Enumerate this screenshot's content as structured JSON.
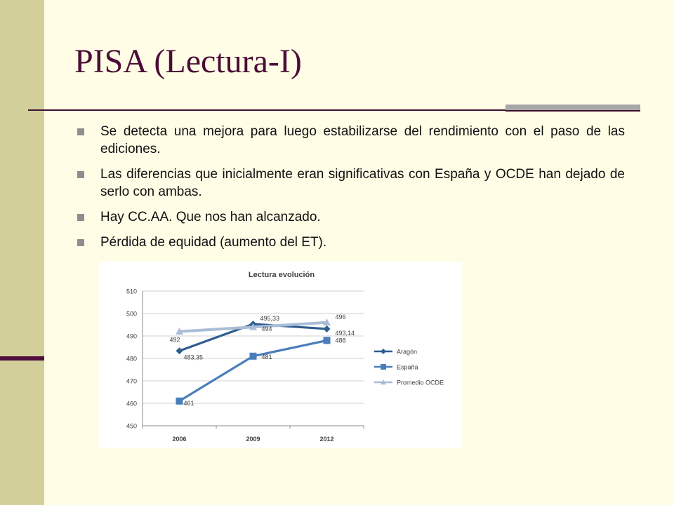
{
  "slide": {
    "title": "PISA (Lectura-I)",
    "bullets": [
      "Se detecta una mejora para luego estabilizarse del rendimiento con el paso de las ediciones.",
      "Las diferencias que inicialmente eran significativas con España y OCDE han dejado de serlo con ambas.",
      "Hay CC.AA. Que nos han alcanzado.",
      "Pérdida de equidad (aumento del ET)."
    ],
    "colors": {
      "background": "#fffde6",
      "side_bar": "#d2cf9b",
      "title": "#4a0d36"
    }
  },
  "chart_data": {
    "type": "line",
    "title": "Lectura evolución",
    "xlabel": "",
    "ylabel": "",
    "categories": [
      "2006",
      "2009",
      "2012"
    ],
    "ylim": [
      450,
      510
    ],
    "yticks": [
      450,
      460,
      470,
      480,
      490,
      500,
      510
    ],
    "grid": true,
    "legend_position": "right",
    "series": [
      {
        "name": "Aragón",
        "values": [
          483.35,
          495.33,
          493.14
        ],
        "labels": [
          "483,35",
          "495,33",
          "493,14"
        ],
        "color": "#2f5d8f",
        "marker": "diamond"
      },
      {
        "name": "España",
        "values": [
          461,
          481,
          488
        ],
        "labels": [
          "461",
          "481",
          "488"
        ],
        "color": "#4a7ebb",
        "marker": "square"
      },
      {
        "name": "Promedio OCDE",
        "values": [
          492,
          494,
          496
        ],
        "labels": [
          "492",
          "494",
          "496"
        ],
        "color": "#a9bcd8",
        "marker": "triangle"
      }
    ]
  }
}
